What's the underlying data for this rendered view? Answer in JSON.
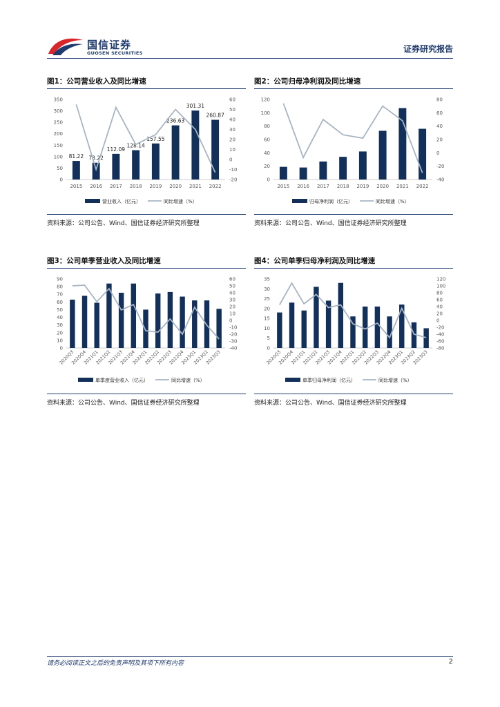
{
  "header": {
    "logo_cn": "国信证券",
    "logo_en": "GUOSEN SECURITIES",
    "report_type": "证券研究报告"
  },
  "colors": {
    "bar": "#12305a",
    "line": "#a7b4c4",
    "brand": "#1e3a6e",
    "logo_red": "#d8262a"
  },
  "figures": [
    {
      "title": "图1：公司营业收入及同比增速",
      "source": "资料来源：公司公告、Wind、国信证券经济研究所整理",
      "chart_data": {
        "type": "bar",
        "categories": [
          "2015",
          "2016",
          "2017",
          "2018",
          "2019",
          "2020",
          "2021",
          "2022"
        ],
        "series": [
          {
            "name": "营业收入（亿元）",
            "axis": "left",
            "type": "bar",
            "values": [
              81.22,
              73.22,
              112.09,
              128.14,
              157.55,
              236.63,
              301.31,
              260.87
            ]
          },
          {
            "name": "同比增速（%）",
            "axis": "right",
            "type": "line",
            "values": [
              55,
              -10,
              52,
              15,
              25,
              50,
              30,
              -13
            ]
          }
        ],
        "data_labels": [
          "81.22",
          "73.22",
          "112.09",
          "128.14",
          "157.55",
          "236.63",
          "301.31",
          "260.87"
        ],
        "left_ticks": [
          "0",
          "50",
          "100",
          "150",
          "200",
          "250",
          "300",
          "350"
        ],
        "right_ticks": [
          "-20",
          "-10",
          "0",
          "10",
          "20",
          "30",
          "40",
          "50",
          "60"
        ],
        "ylim_left": [
          0,
          350
        ],
        "ylim_right": [
          -20,
          60
        ],
        "legend_placement": "bottom"
      }
    },
    {
      "title": "图2：公司归母净利润及同比增速",
      "source": "资料来源：公司公告、Wind、国信证券经济研究所整理",
      "chart_data": {
        "type": "bar",
        "categories": [
          "2015",
          "2016",
          "2017",
          "2018",
          "2019",
          "2020",
          "2021",
          "2022"
        ],
        "series": [
          {
            "name": "归母净利润（亿元）",
            "axis": "left",
            "type": "bar",
            "values": [
              19,
              18,
              27,
              34,
              42,
              73,
              107,
              76
            ]
          },
          {
            "name": "同比增速（%）",
            "axis": "right",
            "type": "line",
            "values": [
              74,
              -7,
              50,
              27,
              22,
              70,
              48,
              -30
            ]
          }
        ],
        "left_ticks": [
          "0",
          "20",
          "40",
          "60",
          "80",
          "100",
          "120"
        ],
        "right_ticks": [
          "-40",
          "-20",
          "0",
          "20",
          "40",
          "60",
          "80"
        ],
        "ylim_left": [
          0,
          120
        ],
        "ylim_right": [
          -40,
          80
        ],
        "legend_placement": "bottom"
      }
    },
    {
      "title": "图3：公司单季营业收入及同比增速",
      "source": "资料来源：公司公告、Wind、国信证券经济研究所整理",
      "chart_data": {
        "type": "bar",
        "categories": [
          "2020Q3",
          "2020Q4",
          "2021Q1",
          "2021Q2",
          "2021Q3",
          "2021Q4",
          "2022Q1",
          "2022Q2",
          "2022Q3",
          "2022Q4",
          "2023Q1",
          "2023Q2",
          "2023Q3"
        ],
        "series": [
          {
            "name": "单季度营业收入（亿元）",
            "axis": "left",
            "type": "bar",
            "values": [
              63,
              68,
              59,
              84,
              72,
              84,
              50,
              71,
              73,
              67,
              62,
              62,
              51
            ]
          },
          {
            "name": "同比增速（%）",
            "axis": "right",
            "type": "line",
            "values": [
              50,
              51,
              27,
              46,
              15,
              23,
              -15,
              -17,
              2,
              -20,
              19,
              -7,
              -27
            ]
          }
        ],
        "left_ticks": [
          "0",
          "10",
          "20",
          "30",
          "40",
          "50",
          "60",
          "70",
          "80",
          "90"
        ],
        "right_ticks": [
          "-40",
          "-30",
          "-20",
          "-10",
          "0",
          "10",
          "20",
          "30",
          "40",
          "50",
          "60"
        ],
        "ylim_left": [
          0,
          90
        ],
        "ylim_right": [
          -40,
          60
        ],
        "legend_placement": "bottom"
      }
    },
    {
      "title": "图4：公司单季归母净利润及同比增速",
      "source": "资料来源：公司公告、Wind、国信证券经济研究所整理",
      "chart_data": {
        "type": "bar",
        "categories": [
          "2020Q3",
          "2020Q4",
          "2021Q1",
          "2021Q2",
          "2021Q3",
          "2021Q4",
          "2022Q1",
          "2022Q2",
          "2022Q3",
          "2022Q4",
          "2023Q1",
          "2023Q2",
          "2023Q3"
        ],
        "series": [
          {
            "name": "单季归母净利润（亿元）",
            "axis": "left",
            "type": "bar",
            "values": [
              18,
              23,
              19,
              31,
              24,
              33,
              16,
              21,
              21,
              16,
              22,
              13,
              10
            ]
          },
          {
            "name": "同比增速（%）",
            "axis": "right",
            "type": "line",
            "values": [
              45,
              108,
              48,
              75,
              37,
              45,
              -10,
              -25,
              -8,
              -50,
              35,
              -40,
              -50
            ]
          }
        ],
        "left_ticks": [
          "0",
          "5",
          "10",
          "15",
          "20",
          "25",
          "30",
          "35"
        ],
        "right_ticks": [
          "-80",
          "-60",
          "-40",
          "-20",
          "0",
          "20",
          "40",
          "60",
          "80",
          "100",
          "120"
        ],
        "ylim_left": [
          0,
          35
        ],
        "ylim_right": [
          -80,
          120
        ],
        "legend_placement": "bottom"
      }
    }
  ],
  "footer": {
    "disclaimer": "请务必阅读正文之后的免责声明及其项下所有内容",
    "page": "2"
  }
}
